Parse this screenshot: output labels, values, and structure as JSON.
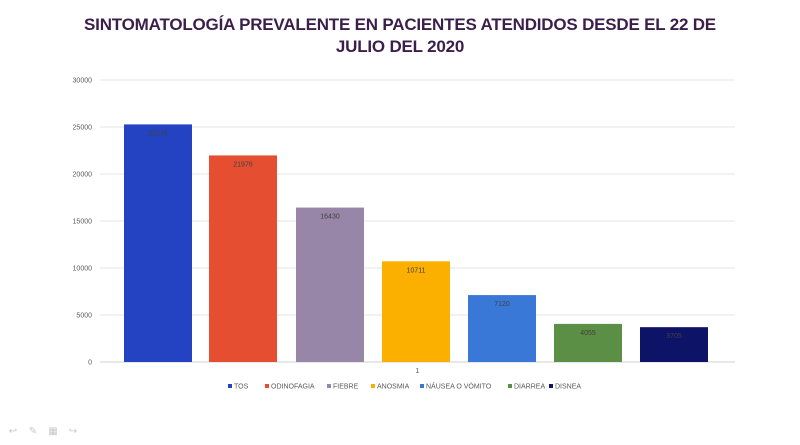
{
  "chart_data": {
    "type": "bar",
    "title": "SINTOMATOLOGÍA PREVALENTE EN PACIENTES ATENDIDOS DESDE EL 22 DE JULIO DEL 2020",
    "title_lines": [
      "SINTOMATOLOGÍA PREVALENTE EN PACIENTES ATENDIDOS DESDE EL 22 DE",
      "JULIO DEL 2020"
    ],
    "categories": [
      "1"
    ],
    "series": [
      {
        "name": "TOS",
        "values": [
          25276
        ],
        "color": "#2443c2"
      },
      {
        "name": "ODINOFAGIA",
        "values": [
          21976
        ],
        "color": "#e64e32"
      },
      {
        "name": "FIEBRE",
        "values": [
          16430
        ],
        "color": "#9886a8"
      },
      {
        "name": "ANOSMIA",
        "values": [
          10711
        ],
        "color": "#fbb000"
      },
      {
        "name": "NÁUSEA O VÓMITO",
        "values": [
          7120
        ],
        "color": "#3a78d8"
      },
      {
        "name": "DIARREA",
        "values": [
          4055
        ],
        "color": "#5b8f45"
      },
      {
        "name": "DISNEA",
        "values": [
          3705
        ],
        "color": "#0d1467"
      }
    ],
    "ylim": [
      0,
      30000
    ],
    "yticks": [
      0,
      5000,
      10000,
      15000,
      20000,
      25000,
      30000
    ],
    "grid": true,
    "legend": "bottom"
  },
  "nav_icons": [
    "arrow-left-icon",
    "pen-icon",
    "slides-icon",
    "arrow-right-icon"
  ]
}
